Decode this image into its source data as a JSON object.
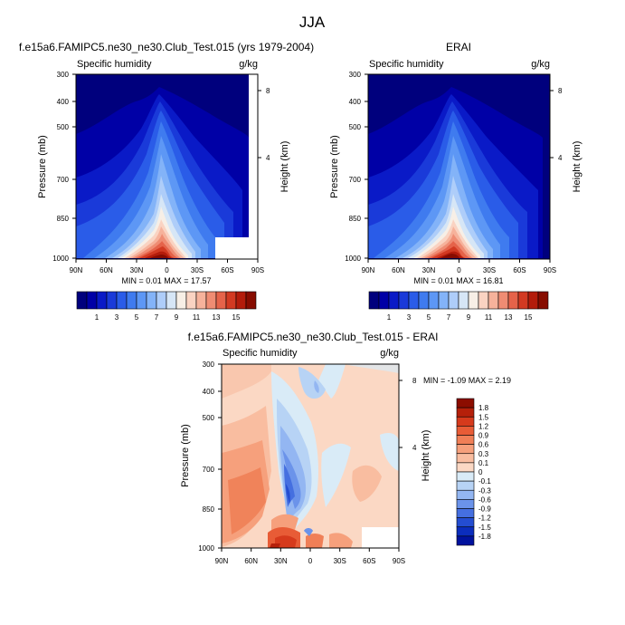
{
  "figure": {
    "title": "JJA"
  },
  "chart_data": [
    {
      "type": "contour",
      "title": "f.e15a6.FAMIPC5.ne30_ne30.Club_Test.015 (yrs 1979-2004)",
      "subtitle_left": "Specific humidity",
      "subtitle_right": "g/kg",
      "ylabel": "Pressure (mb)",
      "ylabel_right": "Height (km)",
      "x_ticks": [
        "90N",
        "60N",
        "30N",
        "0",
        "30S",
        "60S",
        "90S"
      ],
      "y_ticks": [
        "300",
        "400",
        "500",
        "700",
        "850",
        "1000"
      ],
      "y_right_ticks": [
        "8",
        "4"
      ],
      "xlim": [
        90,
        -90
      ],
      "ylim": [
        1000,
        300
      ],
      "y_scale": "log",
      "min_label": "MIN =  0.01  MAX = 17.57",
      "min": 0.01,
      "max": 17.57,
      "colorbar_labels": [
        "1",
        "3",
        "5",
        "7",
        "9",
        "11",
        "13",
        "15"
      ],
      "levels": [
        1,
        2,
        3,
        4,
        5,
        6,
        7,
        8,
        9,
        10,
        11,
        12,
        13,
        14,
        15,
        16
      ],
      "peak": {
        "lat": 0,
        "p": 1000,
        "value": 17.57
      },
      "missing_box": {
        "lat_range": [
          -60,
          -90
        ],
        "p_range": [
          1000,
          850
        ]
      },
      "panel_colors": [
        "#00007d",
        "#0000a6",
        "#0a1ac7",
        "#1a3ad9",
        "#2a5ce8",
        "#3f7bef",
        "#5d97f5",
        "#83b3f8",
        "#aecdf9",
        "#d6e6f6",
        "#f7efe6",
        "#fad3c2",
        "#f6b29b",
        "#ef8c73",
        "#e5634a",
        "#d23a22",
        "#b31c0b",
        "#870c00"
      ]
    },
    {
      "type": "contour",
      "title": "ERAI",
      "subtitle_left": "Specific humidity",
      "subtitle_right": "g/kg",
      "ylabel": "Pressure (mb)",
      "ylabel_right": "Height (km)",
      "x_ticks": [
        "90N",
        "60N",
        "30N",
        "0",
        "30S",
        "60S",
        "90S"
      ],
      "y_ticks": [
        "300",
        "400",
        "500",
        "700",
        "850",
        "1000"
      ],
      "y_right_ticks": [
        "8",
        "4"
      ],
      "xlim": [
        90,
        -90
      ],
      "ylim": [
        1000,
        300
      ],
      "y_scale": "log",
      "min_label": "MIN =  0.01  MAX = 16.81",
      "min": 0.01,
      "max": 16.81,
      "colorbar_labels": [
        "1",
        "3",
        "5",
        "7",
        "9",
        "11",
        "13",
        "15"
      ],
      "levels": [
        1,
        2,
        3,
        4,
        5,
        6,
        7,
        8,
        9,
        10,
        11,
        12,
        13,
        14,
        15,
        16
      ],
      "peak": {
        "lat": 5,
        "p": 1000,
        "value": 16.81
      }
    },
    {
      "type": "contour",
      "title": "f.e15a6.FAMIPC5.ne30_ne30.Club_Test.015 - ERAI",
      "subtitle_left": "Specific humidity",
      "subtitle_right": "g/kg",
      "ylabel": "Pressure (mb)",
      "ylabel_right": "Height (km)",
      "x_ticks": [
        "90N",
        "60N",
        "30N",
        "0",
        "30S",
        "60S",
        "90S"
      ],
      "y_ticks": [
        "300",
        "400",
        "500",
        "700",
        "850",
        "1000"
      ],
      "y_right_ticks": [
        "8",
        "4"
      ],
      "xlim": [
        90,
        -90
      ],
      "ylim": [
        1000,
        300
      ],
      "y_scale": "log",
      "min_label": "MIN = -1.09  MAX =  2.19",
      "min": -1.09,
      "max": 2.19,
      "colorbar_labels": [
        "1.8",
        "1.5",
        "1.2",
        "0.9",
        "0.6",
        "0.3",
        "0.1",
        "0",
        "-0.1",
        "-0.3",
        "-0.6",
        "-0.9",
        "-1.2",
        "-1.5",
        "-1.8"
      ],
      "levels": [
        -1.8,
        -1.5,
        -1.2,
        -0.9,
        -0.6,
        -0.3,
        -0.1,
        0,
        0.1,
        0.3,
        0.6,
        0.9,
        1.2,
        1.5,
        1.8
      ],
      "missing_box": {
        "lat_range": [
          -60,
          -90
        ],
        "p_range": [
          1000,
          900
        ]
      }
    }
  ],
  "colors": {
    "seq": [
      "#00007d",
      "#0000a6",
      "#0a1ac7",
      "#1a3ad9",
      "#2a5ce8",
      "#3f7bef",
      "#5d97f5",
      "#83b3f8",
      "#aecdf9",
      "#d6e6f6",
      "#f7efe6",
      "#fad3c2",
      "#f6b29b",
      "#ef8c73",
      "#e5634a",
      "#d23a22",
      "#b31c0b",
      "#870c00"
    ],
    "div": [
      "#8c0d00",
      "#b5200a",
      "#d63a1c",
      "#e85c36",
      "#f07f57",
      "#f6a07c",
      "#f9bda0",
      "#fbd8c4",
      "#d9ebf7",
      "#b7d3f5",
      "#93b6f2",
      "#6b93ea",
      "#456fe0",
      "#244dd1",
      "#0b2dbd",
      "#00129e"
    ]
  }
}
